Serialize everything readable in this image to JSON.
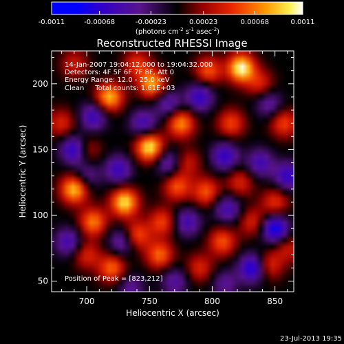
{
  "chart_data": {
    "type": "heatmap",
    "title": "Reconstructed RHESSI Image",
    "xlabel": "Heliocentric X (arcsec)",
    "ylabel": "Heliocentric Y (arcsec)",
    "xlim": [
      672,
      865
    ],
    "ylim": [
      42,
      225
    ],
    "x_ticks": [
      700,
      750,
      800,
      850
    ],
    "x_tick_labels": [
      "700",
      "750",
      "800",
      "850"
    ],
    "y_ticks": [
      50,
      100,
      150,
      200
    ],
    "y_tick_labels": [
      "50",
      "100",
      "150",
      "200"
    ],
    "colorbar": {
      "range": [
        -0.0011,
        0.0011
      ],
      "tick_values": [
        -0.0011,
        -0.00068,
        -0.00023,
        0.00023,
        0.00068,
        0.0011
      ],
      "tick_labels": [
        "-0.0011",
        "-0.00068",
        "-0.00023",
        "0.00023",
        "0.00068",
        "0.0011"
      ],
      "unit_main": "(photons cm",
      "unit_exp1": "-2",
      "unit_mid1": " s",
      "unit_exp2": "-1",
      "unit_mid2": " asec",
      "unit_exp3": "-2",
      "unit_close": ")"
    },
    "annotations": [
      "14-Jan-2007 19:04:12.000 to 19:04:32.000",
      "Detectors: 4F 5F 6F 7F 8F, Att 0",
      "Energy Range: 12.0 - 25.0 keV",
      "Clean     Total counts: 1.61E+03"
    ],
    "peak_label": "Position of Peak = [823,212]",
    "peak": [
      823,
      212
    ],
    "date_stamp": "23-Jul-2013 19:35",
    "blobs": [
      {
        "x": 823,
        "y": 212,
        "v": 1.0
      },
      {
        "x": 750,
        "y": 152,
        "v": 0.95
      },
      {
        "x": 730,
        "y": 110,
        "v": 0.9
      },
      {
        "x": 752,
        "y": 200,
        "v": 0.75
      },
      {
        "x": 718,
        "y": 190,
        "v": 0.8
      },
      {
        "x": 690,
        "y": 120,
        "v": 0.85
      },
      {
        "x": 775,
        "y": 170,
        "v": 0.7
      },
      {
        "x": 797,
        "y": 210,
        "v": 0.55
      },
      {
        "x": 815,
        "y": 170,
        "v": 0.5
      },
      {
        "x": 795,
        "y": 118,
        "v": 0.55
      },
      {
        "x": 772,
        "y": 122,
        "v": 0.55
      },
      {
        "x": 808,
        "y": 80,
        "v": 0.55
      },
      {
        "x": 758,
        "y": 70,
        "v": 0.6
      },
      {
        "x": 720,
        "y": 60,
        "v": 0.6
      },
      {
        "x": 857,
        "y": 170,
        "v": 0.5
      },
      {
        "x": 850,
        "y": 110,
        "v": 0.45
      },
      {
        "x": 845,
        "y": 62,
        "v": 0.45
      },
      {
        "x": 680,
        "y": 170,
        "v": 0.4
      },
      {
        "x": 705,
        "y": 95,
        "v": 0.65
      },
      {
        "x": 740,
        "y": 85,
        "v": 0.55
      },
      {
        "x": 790,
        "y": 60,
        "v": 0.4
      },
      {
        "x": 760,
        "y": 95,
        "v": 0.5
      },
      {
        "x": 740,
        "y": 215,
        "v": 0.45
      },
      {
        "x": 822,
        "y": 125,
        "v": 0.4
      },
      {
        "x": 832,
        "y": 95,
        "v": 0.4
      },
      {
        "x": 690,
        "y": 215,
        "v": 0.35
      },
      {
        "x": 700,
        "y": 150,
        "v": 0.35
      },
      {
        "x": 780,
        "y": 140,
        "v": 0.35
      },
      {
        "x": 700,
        "y": 70,
        "v": 0.4
      },
      {
        "x": 860,
        "y": 75,
        "v": 0.35
      },
      {
        "x": 838,
        "y": 200,
        "v": 0.4
      },
      {
        "x": 690,
        "y": 150,
        "v": -0.7
      },
      {
        "x": 725,
        "y": 135,
        "v": -0.55
      },
      {
        "x": 745,
        "y": 170,
        "v": -0.5
      },
      {
        "x": 790,
        "y": 190,
        "v": -0.6
      },
      {
        "x": 810,
        "y": 145,
        "v": -0.6
      },
      {
        "x": 838,
        "y": 140,
        "v": -0.5
      },
      {
        "x": 850,
        "y": 90,
        "v": -0.8
      },
      {
        "x": 832,
        "y": 60,
        "v": -0.75
      },
      {
        "x": 780,
        "y": 95,
        "v": -0.5
      },
      {
        "x": 728,
        "y": 80,
        "v": -0.45
      },
      {
        "x": 685,
        "y": 80,
        "v": -0.5
      },
      {
        "x": 705,
        "y": 175,
        "v": -0.55
      },
      {
        "x": 765,
        "y": 185,
        "v": -0.45
      },
      {
        "x": 860,
        "y": 130,
        "v": -0.6
      },
      {
        "x": 812,
        "y": 105,
        "v": -0.5
      },
      {
        "x": 770,
        "y": 50,
        "v": -0.4
      },
      {
        "x": 810,
        "y": 48,
        "v": -0.35
      },
      {
        "x": 735,
        "y": 45,
        "v": -0.35
      },
      {
        "x": 700,
        "y": 130,
        "v": -0.35
      },
      {
        "x": 765,
        "y": 140,
        "v": -0.45
      },
      {
        "x": 845,
        "y": 185,
        "v": -0.4
      }
    ],
    "blob_sigma": 7.5
  }
}
